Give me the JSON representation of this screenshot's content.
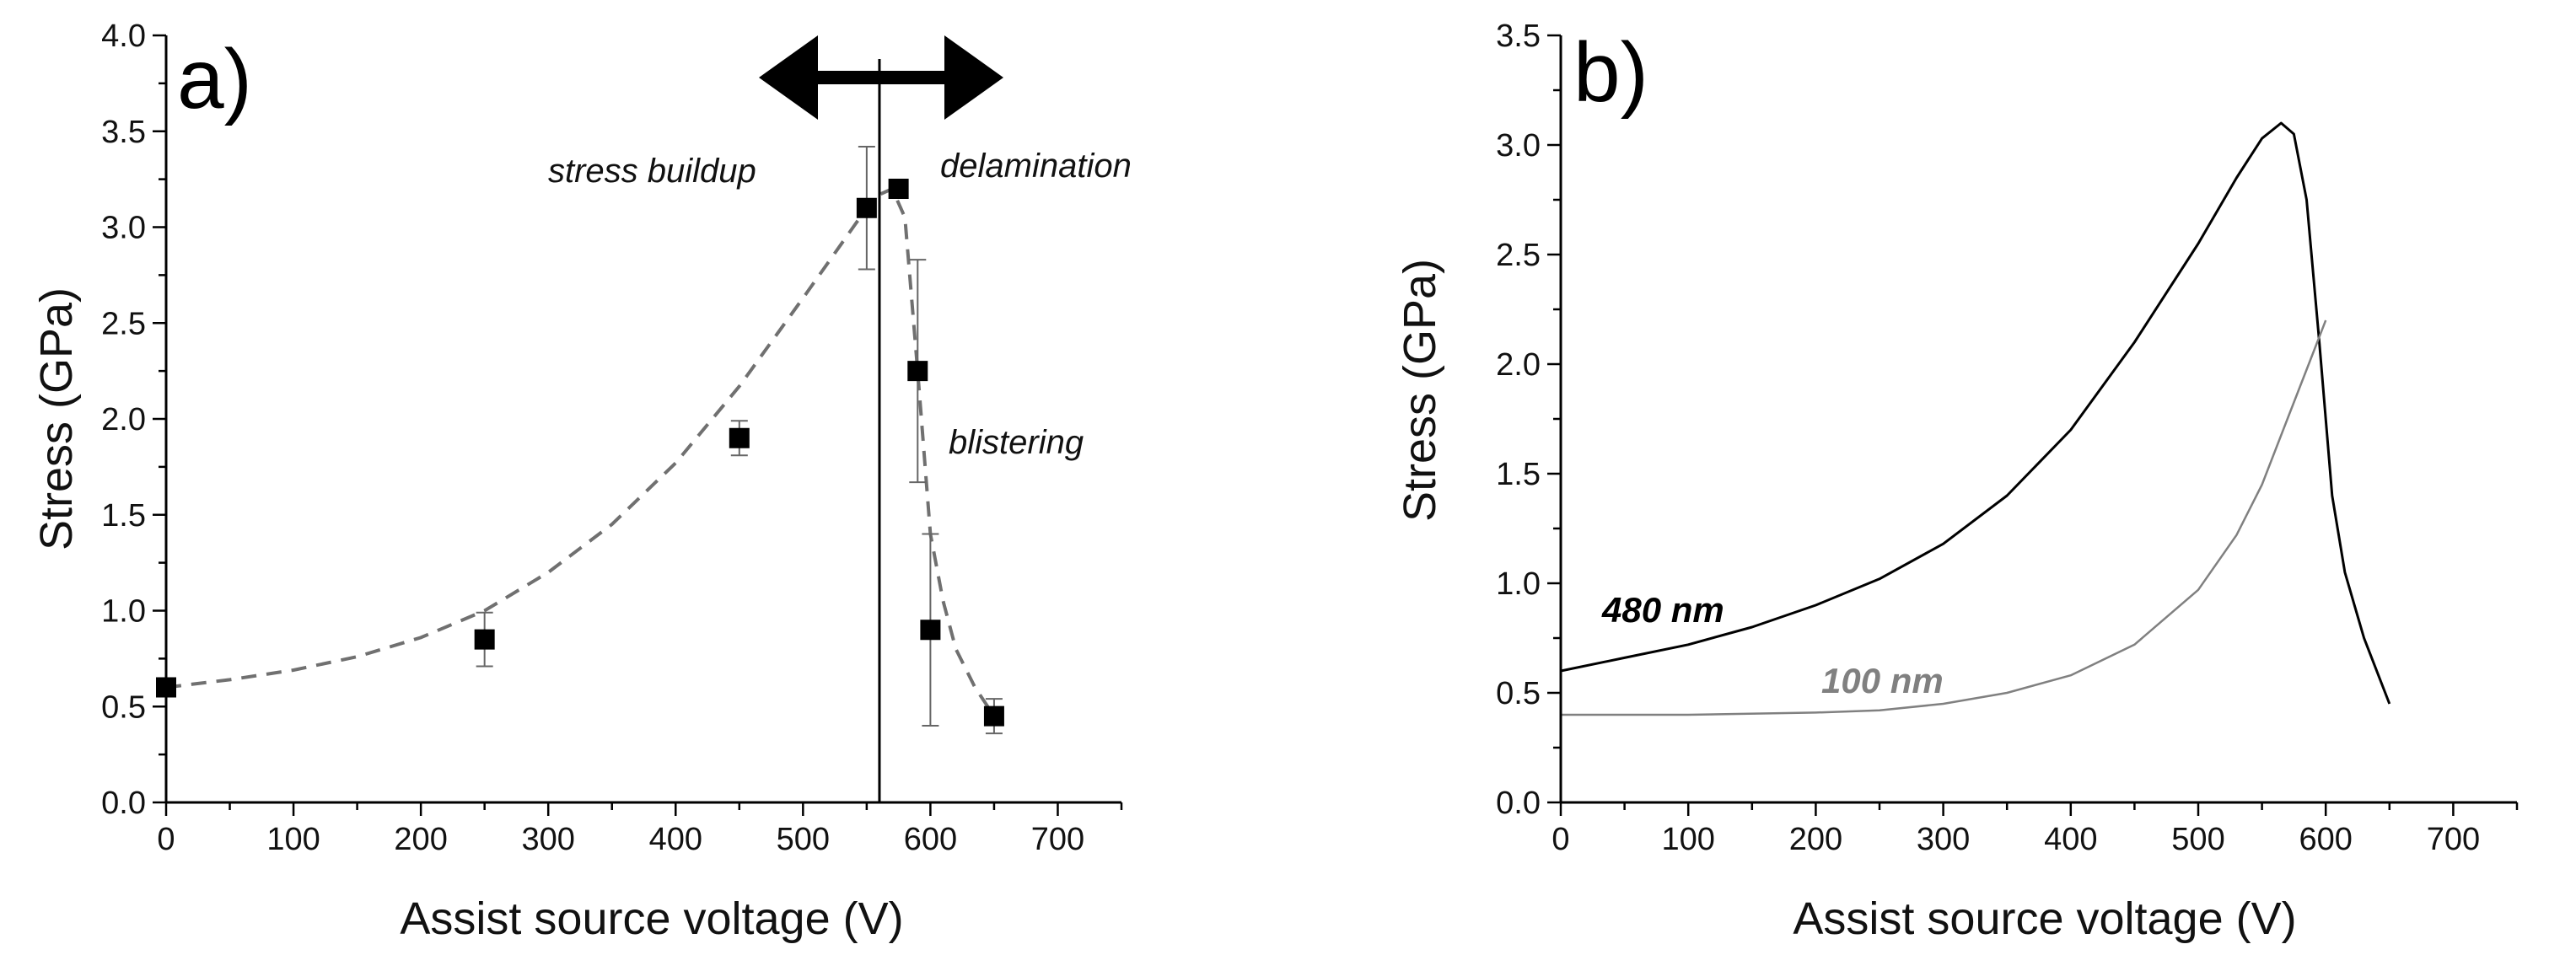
{
  "chart_data": [
    {
      "panel": "a)",
      "type": "scatter",
      "xlabel": "Assist source voltage (V)",
      "ylabel": "Stress (GPa)",
      "xlim": [
        0,
        750
      ],
      "ylim": [
        0,
        4.0
      ],
      "xticks": [
        0,
        100,
        200,
        300,
        400,
        500,
        600,
        700
      ],
      "yticks": [
        0.0,
        0.5,
        1.0,
        1.5,
        2.0,
        2.5,
        3.0,
        3.5,
        4.0
      ],
      "xtick_labels": [
        "0",
        "100",
        "200",
        "300",
        "400",
        "500",
        "600",
        "700"
      ],
      "ytick_labels": [
        "0.0",
        "0.5",
        "1.0",
        "1.5",
        "2.0",
        "2.5",
        "3.0",
        "3.5",
        "4.0"
      ],
      "points": [
        {
          "x": 0,
          "y": 0.6,
          "err": 0
        },
        {
          "x": 250,
          "y": 0.85,
          "err": 0.14
        },
        {
          "x": 450,
          "y": 1.9,
          "err": 0.09
        },
        {
          "x": 550,
          "y": 3.1,
          "err": 0.32
        },
        {
          "x": 575,
          "y": 3.2,
          "err": 0
        },
        {
          "x": 590,
          "y": 2.25,
          "err": 0.58
        },
        {
          "x": 600,
          "y": 0.9,
          "err": 0.5
        },
        {
          "x": 650,
          "y": 0.45,
          "err": 0.09
        }
      ],
      "fit_curve": [
        [
          0,
          0.6
        ],
        [
          50,
          0.64
        ],
        [
          100,
          0.69
        ],
        [
          150,
          0.76
        ],
        [
          200,
          0.86
        ],
        [
          250,
          1.0
        ],
        [
          300,
          1.2
        ],
        [
          350,
          1.45
        ],
        [
          400,
          1.77
        ],
        [
          450,
          2.17
        ],
        [
          500,
          2.63
        ],
        [
          550,
          3.1
        ],
        [
          560,
          3.17
        ],
        [
          570,
          3.2
        ],
        [
          580,
          3.05
        ],
        [
          590,
          2.25
        ],
        [
          600,
          1.4
        ],
        [
          610,
          1.05
        ],
        [
          620,
          0.8
        ],
        [
          635,
          0.6
        ],
        [
          650,
          0.45
        ]
      ],
      "divider_x": 560,
      "annotations": {
        "left": "stress buildup",
        "right": "delamination",
        "lower": "blistering"
      }
    },
    {
      "panel": "b)",
      "type": "line",
      "xlabel": "Assist source voltage (V)",
      "ylabel": "Stress (GPa)",
      "xlim": [
        0,
        750
      ],
      "ylim": [
        0,
        3.5
      ],
      "xticks": [
        0,
        100,
        200,
        300,
        400,
        500,
        600,
        700
      ],
      "yticks": [
        0.0,
        0.5,
        1.0,
        1.5,
        2.0,
        2.5,
        3.0,
        3.5
      ],
      "xtick_labels": [
        "0",
        "100",
        "200",
        "300",
        "400",
        "500",
        "600",
        "700"
      ],
      "ytick_labels": [
        "0.0",
        "0.5",
        "1.0",
        "1.5",
        "2.0",
        "2.5",
        "3.0",
        "3.5"
      ],
      "series": [
        {
          "name": "480 nm",
          "color": "#000000",
          "points": [
            [
              0,
              0.6
            ],
            [
              50,
              0.66
            ],
            [
              100,
              0.72
            ],
            [
              150,
              0.8
            ],
            [
              200,
              0.9
            ],
            [
              250,
              1.02
            ],
            [
              300,
              1.18
            ],
            [
              350,
              1.4
            ],
            [
              400,
              1.7
            ],
            [
              450,
              2.1
            ],
            [
              500,
              2.55
            ],
            [
              530,
              2.85
            ],
            [
              550,
              3.03
            ],
            [
              565,
              3.1
            ],
            [
              575,
              3.05
            ],
            [
              585,
              2.75
            ],
            [
              595,
              2.1
            ],
            [
              605,
              1.4
            ],
            [
              615,
              1.05
            ],
            [
              630,
              0.75
            ],
            [
              650,
              0.45
            ]
          ]
        },
        {
          "name": "100 nm",
          "color": "#808080",
          "points": [
            [
              0,
              0.4
            ],
            [
              100,
              0.4
            ],
            [
              200,
              0.41
            ],
            [
              250,
              0.42
            ],
            [
              300,
              0.45
            ],
            [
              350,
              0.5
            ],
            [
              400,
              0.58
            ],
            [
              450,
              0.72
            ],
            [
              500,
              0.97
            ],
            [
              530,
              1.22
            ],
            [
              550,
              1.45
            ],
            [
              570,
              1.75
            ],
            [
              590,
              2.05
            ],
            [
              600,
              2.2
            ]
          ]
        }
      ]
    }
  ]
}
